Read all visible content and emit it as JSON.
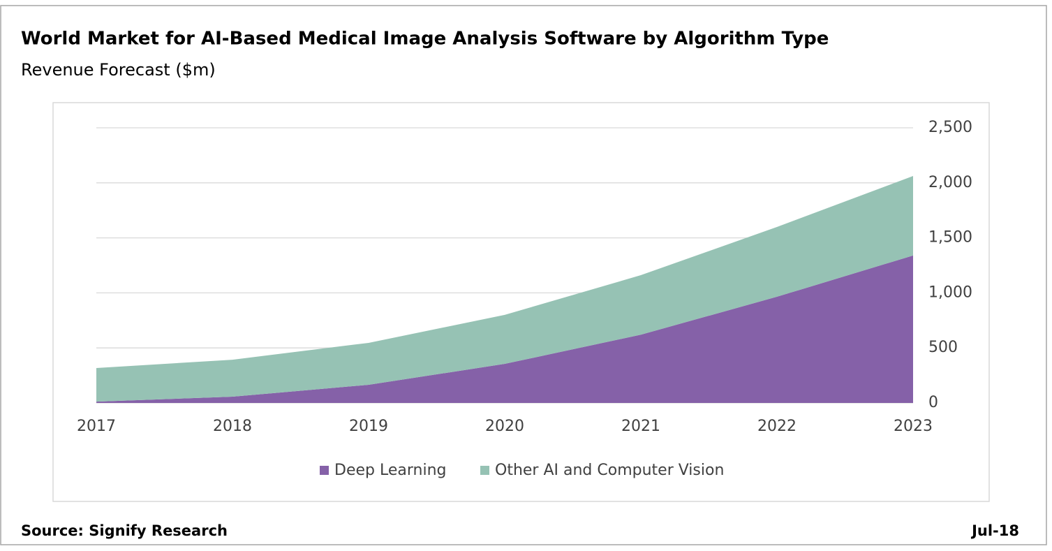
{
  "chart_data": {
    "type": "area",
    "stacked": true,
    "title": "World Market for AI-Based Medical Image Analysis Software by Algorithm Type",
    "subtitle": "Revenue Forecast ($m)",
    "categories": [
      "2017",
      "2018",
      "2019",
      "2020",
      "2021",
      "2022",
      "2023"
    ],
    "series": [
      {
        "name": "Deep Learning",
        "color": "#8561a8",
        "values": [
          12,
          57,
          165,
          355,
          620,
          965,
          1340
        ]
      },
      {
        "name": "Other AI and Computer Vision",
        "color": "#96c2b4",
        "values": [
          305,
          336,
          381,
          445,
          541,
          634,
          722
        ]
      }
    ],
    "ylim": [
      0,
      2500
    ],
    "yticks": [
      0,
      500,
      {
        "value": 1000,
        "label": "1,000"
      },
      {
        "value": 1500,
        "label": "1,500"
      },
      {
        "value": 2000,
        "label": "2,000"
      },
      {
        "value": 2500,
        "label": "2,500"
      }
    ],
    "y_axis_side": "right",
    "grid": true,
    "legend": "bottom",
    "source": "Source: Signify Research",
    "date": "Jul-18"
  }
}
